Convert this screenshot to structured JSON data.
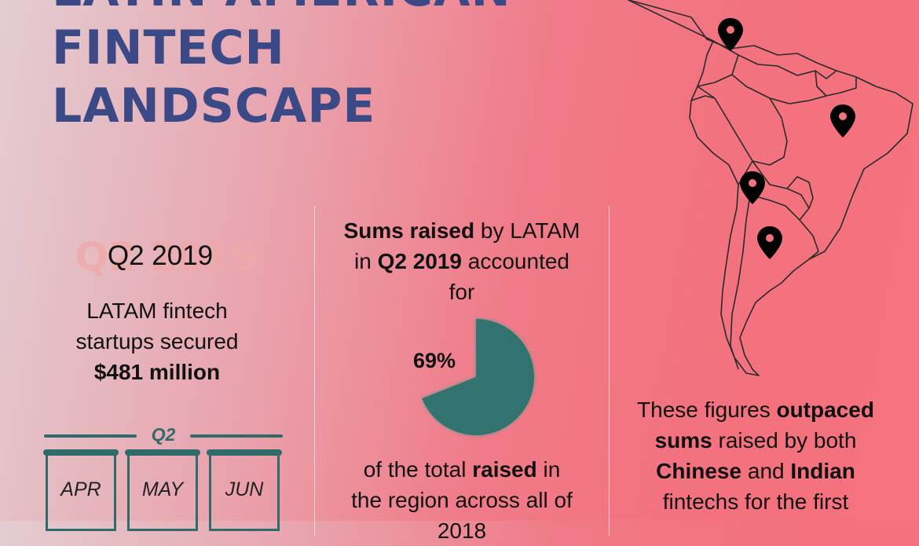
{
  "title": {
    "line1": "LATIN AMERICAN",
    "line2": "FINTECH",
    "line3": "LANDSCAPE"
  },
  "left_panel": {
    "ghost_text": "Q2 2019",
    "period": "Q2 2019",
    "line1": "LATAM fintech",
    "line2": "startups secured",
    "amount": "$481 million",
    "timeline_label": "Q2",
    "months": [
      "APR",
      "MAY",
      "JUN"
    ]
  },
  "middle_panel": {
    "intro_bold1": "Sums raised",
    "intro_text1": " by LATAM",
    "intro_text2": "in ",
    "intro_bold2": "Q2 2019",
    "intro_text3": " accounted",
    "intro_text4": "for",
    "percent_label": "69%",
    "outro_text1": "of the total ",
    "outro_bold1": "raised",
    "outro_text2": " in",
    "outro_text3": "the region across all of",
    "outro_text4": "2018"
  },
  "chart_data": {
    "type": "pie",
    "values": [
      69
    ],
    "labels": [
      "69%"
    ],
    "color": "#33736f"
  },
  "right_panel": {
    "text1": "These figures ",
    "bold1": "outpaced",
    "bold2": "sums",
    "text2": " raised by both",
    "bold3": "Chinese",
    "text3": " and ",
    "bold4": "Indian",
    "text4": "fintechs for the first"
  },
  "map": {
    "region": "South America",
    "markers": 4,
    "marker_icon": "location-pin-icon"
  },
  "colors": {
    "title": "#3b4a86",
    "accent": "#2f6b68",
    "pie": "#33736f"
  }
}
